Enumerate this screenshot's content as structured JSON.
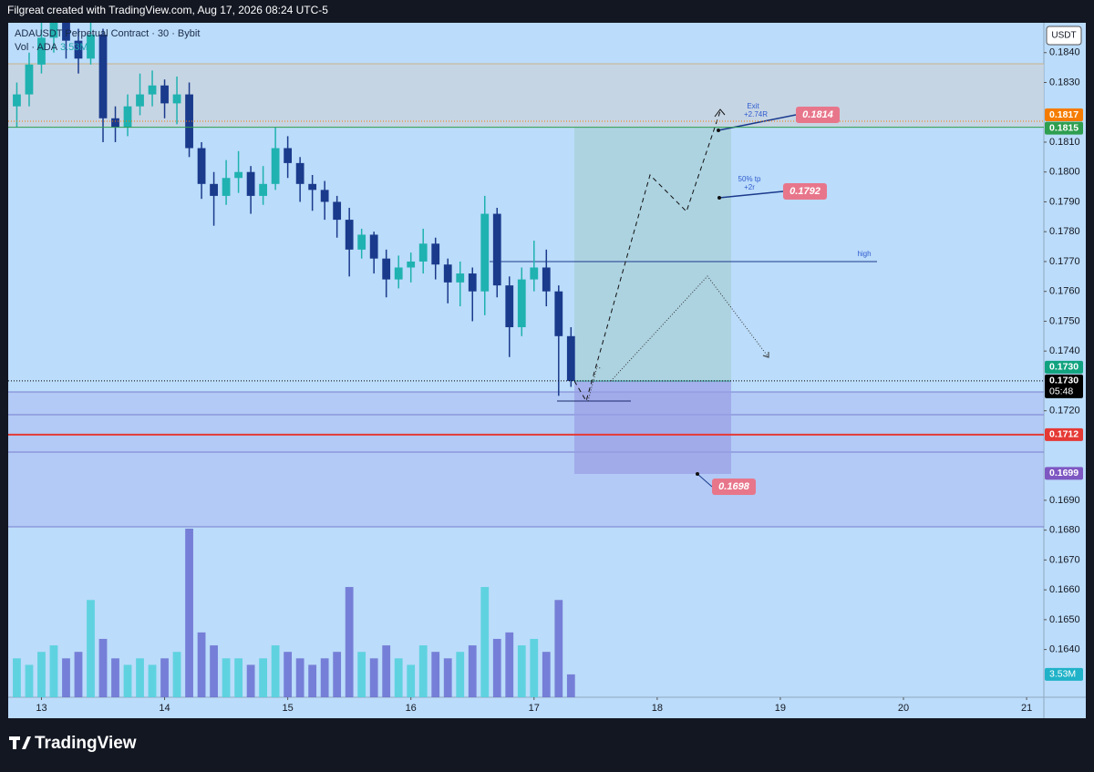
{
  "chart_data": {
    "type": "candlestick",
    "header": "Filgreat created with TradingView.com, Aug 17, 2026 08:24 UTC-5",
    "title": "ADAUSDT Perpetual Contract · 30 · Bybit",
    "volume_legend": "Vol · ADA",
    "volume_label": {
      "value": 3.53,
      "label": "3.53M"
    },
    "currency": "USDT",
    "countdown": "05:48",
    "brand": "TradingView",
    "up_color": "#1fb2b0",
    "down_color": "#1a3a8c",
    "volume_up_color": "#4fd0da",
    "volume_down_color": "#6a6fd0",
    "x": [
      12.8,
      12.9,
      13.0,
      13.1,
      13.2,
      13.3,
      13.4,
      13.5,
      13.6,
      13.7,
      13.8,
      13.9,
      14.0,
      14.1,
      14.2,
      14.3,
      14.4,
      14.5,
      14.6,
      14.7,
      14.8,
      14.9,
      15.0,
      15.1,
      15.2,
      15.3,
      15.4,
      15.5,
      15.6,
      15.7,
      15.8,
      15.9,
      16.0,
      16.1,
      16.2,
      16.3,
      16.4,
      16.5,
      16.6,
      16.7,
      16.8,
      16.9,
      17.0,
      17.1,
      17.2,
      17.3
    ],
    "open": [
      0.1822,
      0.1826,
      0.1836,
      0.1845,
      0.1852,
      0.1844,
      0.1838,
      0.1846,
      0.1818,
      0.1815,
      0.1822,
      0.1826,
      0.1829,
      0.1823,
      0.1826,
      0.1808,
      0.1796,
      0.1792,
      0.1798,
      0.18,
      0.1792,
      0.1796,
      0.1808,
      0.1803,
      0.1796,
      0.1794,
      0.179,
      0.1784,
      0.1774,
      0.1779,
      0.1771,
      0.1764,
      0.1768,
      0.177,
      0.1776,
      0.1769,
      0.1763,
      0.1766,
      0.176,
      0.1786,
      0.1762,
      0.1748,
      0.1764,
      0.1768,
      0.176,
      0.1745
    ],
    "high": [
      0.183,
      0.184,
      0.1852,
      0.1858,
      0.1856,
      0.1848,
      0.1856,
      0.1848,
      0.1822,
      0.1826,
      0.1833,
      0.1834,
      0.1831,
      0.1832,
      0.183,
      0.181,
      0.18,
      0.1804,
      0.1807,
      0.1802,
      0.1802,
      0.1815,
      0.1812,
      0.1805,
      0.1799,
      0.1797,
      0.1792,
      0.1788,
      0.1781,
      0.178,
      0.1774,
      0.1772,
      0.1773,
      0.1781,
      0.1778,
      0.1771,
      0.177,
      0.1768,
      0.1792,
      0.1788,
      0.1765,
      0.1768,
      0.1777,
      0.1774,
      0.1762,
      0.1748
    ],
    "low": [
      0.1815,
      0.1822,
      0.1833,
      0.184,
      0.1838,
      0.1833,
      0.1836,
      0.181,
      0.181,
      0.1812,
      0.1819,
      0.1822,
      0.1818,
      0.1816,
      0.1805,
      0.1791,
      0.1782,
      0.1789,
      0.1793,
      0.1786,
      0.1789,
      0.1794,
      0.1798,
      0.179,
      0.1787,
      0.1784,
      0.1778,
      0.1765,
      0.1771,
      0.1766,
      0.1758,
      0.1761,
      0.1763,
      0.1766,
      0.1764,
      0.1756,
      0.1755,
      0.175,
      0.1752,
      0.1758,
      0.1738,
      0.1745,
      0.176,
      0.1755,
      0.1725,
      0.1728
    ],
    "close": [
      0.1826,
      0.1836,
      0.1845,
      0.1852,
      0.1844,
      0.1838,
      0.1846,
      0.1818,
      0.1815,
      0.1822,
      0.1826,
      0.1829,
      0.1823,
      0.1826,
      0.1808,
      0.1796,
      0.1792,
      0.1798,
      0.18,
      0.1792,
      0.1796,
      0.1808,
      0.1803,
      0.1796,
      0.1794,
      0.179,
      0.1784,
      0.1774,
      0.1779,
      0.1771,
      0.1764,
      0.1768,
      0.177,
      0.1776,
      0.1769,
      0.1763,
      0.1766,
      0.176,
      0.1786,
      0.1762,
      0.1748,
      0.1764,
      0.1768,
      0.176,
      0.1745,
      0.173
    ],
    "volume": [
      6,
      5,
      7,
      8,
      6,
      7,
      15,
      9,
      6,
      5,
      6,
      5,
      6,
      7,
      26,
      10,
      8,
      6,
      6,
      5,
      6,
      8,
      7,
      6,
      5,
      6,
      7,
      17,
      7,
      6,
      8,
      6,
      5,
      8,
      7,
      6,
      7,
      8,
      17,
      9,
      10,
      8,
      9,
      7,
      15,
      3.53
    ],
    "xlim": [
      12.73,
      21.14
    ],
    "xticks": [
      13,
      14,
      15,
      16,
      17,
      18,
      19,
      20,
      21
    ],
    "ylim": [
      0.1624,
      0.185
    ],
    "volume_ylim": [
      0,
      104
    ],
    "yticks": [
      {
        "value": 0.184,
        "label": "0.1840"
      },
      {
        "value": 0.183,
        "label": "0.1830"
      },
      {
        "value": 0.181,
        "label": "0.1810"
      },
      {
        "value": 0.18,
        "label": "0.1800"
      },
      {
        "value": 0.179,
        "label": "0.1790"
      },
      {
        "value": 0.178,
        "label": "0.1780"
      },
      {
        "value": 0.177,
        "label": "0.1770"
      },
      {
        "value": 0.176,
        "label": "0.1760"
      },
      {
        "value": 0.175,
        "label": "0.1750"
      },
      {
        "value": 0.174,
        "label": "0.1740"
      },
      {
        "value": 0.172,
        "label": "0.1720"
      },
      {
        "value": 0.169,
        "label": "0.1690"
      },
      {
        "value": 0.168,
        "label": "0.1680"
      },
      {
        "value": 0.167,
        "label": "0.1670"
      },
      {
        "value": 0.166,
        "label": "0.1660"
      },
      {
        "value": 0.165,
        "label": "0.1650"
      },
      {
        "value": 0.164,
        "label": "0.1640"
      }
    ],
    "price_labels": [
      {
        "value": 0.1817,
        "label": "0.1817",
        "color": "#f57c00",
        "line": "dotted"
      },
      {
        "value": 0.1815,
        "label": "0.1815",
        "color": "#2e9e4f",
        "line": "solid"
      },
      {
        "value": 0.173,
        "label": "0.1730",
        "color": "#11a37f",
        "line": "none"
      },
      {
        "value": 0.173,
        "label": "0.1730",
        "color": "#000000",
        "line": "dotted"
      },
      {
        "value": 0.1712,
        "label": "0.1712",
        "color": "#e53935",
        "line": "solid"
      },
      {
        "value": 0.1699,
        "label": "0.1699",
        "color": "#7e57c2",
        "line": "none"
      }
    ],
    "targets": [
      {
        "value": 0.1814,
        "label": "0.1814"
      },
      {
        "value": 0.1792,
        "label": "0.1792"
      },
      {
        "value": 0.1698,
        "label": "0.1698"
      }
    ],
    "annotations": [
      "Exit",
      "+2.74R",
      "50% tp",
      "+2r",
      "high"
    ]
  }
}
